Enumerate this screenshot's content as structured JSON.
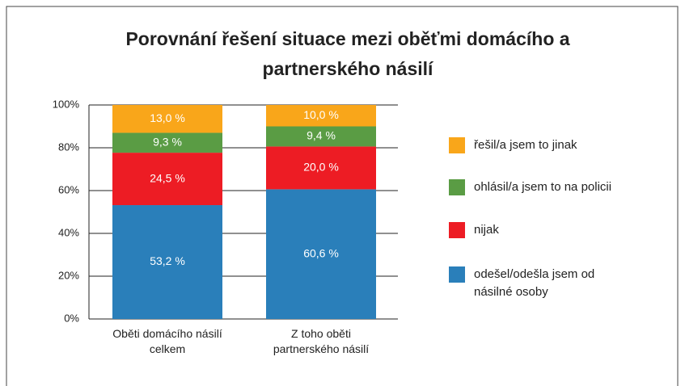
{
  "chart_data": {
    "type": "stacked_bar",
    "title": "Porovnání řešení situace mezi oběťmi domácího a partnerského násilí",
    "categories": [
      "Oběti domácího násilí celkem",
      "Z toho oběti partnerského násilí"
    ],
    "series": [
      {
        "name": "odešel/odešla jsem od násilné osoby",
        "color": "#2a7fba",
        "values": [
          53.2,
          60.6
        ],
        "value_labels": [
          "53,2 %",
          "60,6 %"
        ]
      },
      {
        "name": "nijak",
        "color": "#ed1c24",
        "values": [
          24.5,
          20.0
        ],
        "value_labels": [
          "24,5 %",
          "20,0 %"
        ]
      },
      {
        "name": "ohlásil/a jsem to na policii",
        "color": "#5a9c44",
        "values": [
          9.3,
          9.4
        ],
        "value_labels": [
          "9,3 %",
          "9,4 %"
        ]
      },
      {
        "name": "řešil/a jsem to jinak",
        "color": "#f9a61a",
        "values": [
          13.0,
          10.0
        ],
        "value_labels": [
          "13,0 %",
          "10,0 %"
        ]
      }
    ],
    "ylim": [
      0,
      100
    ],
    "yticks": [
      {
        "value": 0,
        "label": "0%"
      },
      {
        "value": 20,
        "label": "20%"
      },
      {
        "value": 40,
        "label": "40%"
      },
      {
        "value": 60,
        "label": "60%"
      },
      {
        "value": 80,
        "label": "80%"
      },
      {
        "value": 100,
        "label": "100%"
      }
    ],
    "grid": true
  }
}
